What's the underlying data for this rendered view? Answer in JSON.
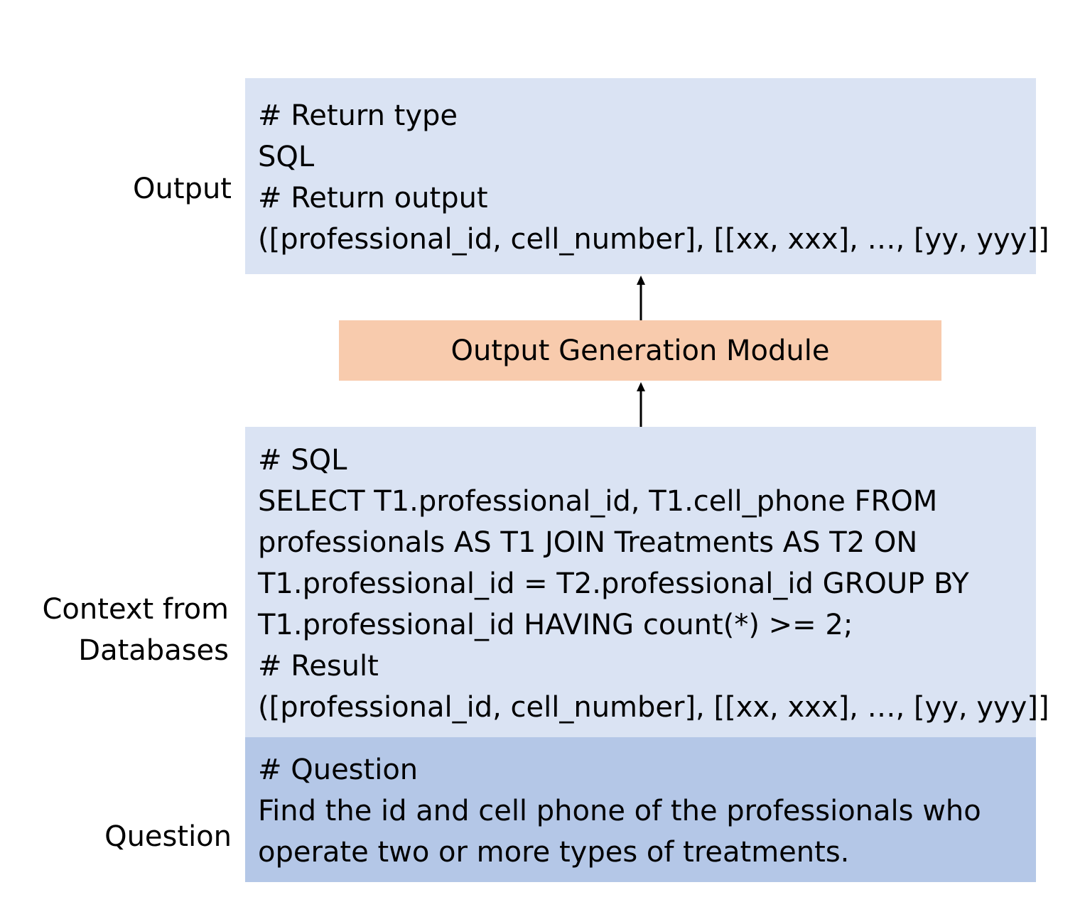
{
  "colors": {
    "output_box": "#dae3f3",
    "context_box": "#dae3f3",
    "question_box": "#b4c7e7",
    "module_box": "#f8cbad",
    "text": "#000000",
    "arrow": "#000000"
  },
  "labels": {
    "output": "Output",
    "context_line1": "Context from",
    "context_line2": "Databases",
    "question": "Question"
  },
  "output_box": {
    "lines": [
      "# Return type",
      "SQL",
      "# Return output",
      "([professional_id, cell_number], [[xx, xxx], …, [yy, yyy]]"
    ]
  },
  "module": {
    "label": "Output Generation Module"
  },
  "context_box": {
    "lines": [
      "# SQL",
      "SELECT T1.professional_id, T1.cell_phone FROM",
      "professionals AS T1 JOIN Treatments AS T2 ON",
      "T1.professional_id = T2.professional_id GROUP BY",
      "T1.professional_id HAVING count(*) >= 2;",
      "# Result",
      "([professional_id, cell_number], [[xx, xxx], …, [yy, yyy]]"
    ]
  },
  "question_box": {
    "lines": [
      "# Question",
      "Find the id and cell phone of the professionals who",
      "operate two or more types of treatments."
    ]
  }
}
